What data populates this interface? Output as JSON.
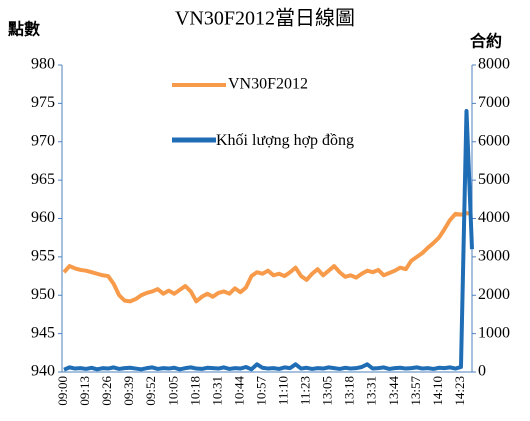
{
  "chart_data": {
    "type": "line",
    "title": "VN30F2012當日線圖",
    "y_label": "點數",
    "y2_label": "合約",
    "categories": [
      "09:00",
      null,
      null,
      null,
      "09:13",
      null,
      null,
      null,
      "09:26",
      null,
      null,
      null,
      "09:39",
      null,
      null,
      null,
      "09:52",
      null,
      null,
      null,
      "10:05",
      null,
      null,
      null,
      "10:18",
      null,
      null,
      null,
      "10:31",
      null,
      null,
      null,
      "10:44",
      null,
      null,
      null,
      "10:57",
      null,
      null,
      null,
      "11:10",
      null,
      null,
      null,
      "11:23",
      null,
      null,
      null,
      "13:05",
      null,
      null,
      null,
      "13:18",
      null,
      null,
      null,
      "13:31",
      null,
      null,
      null,
      "13:44",
      null,
      null,
      null,
      "13:57",
      null,
      null,
      null,
      "14:10",
      null,
      null,
      null,
      "14:23",
      null,
      null
    ],
    "series": [
      {
        "name": "VN30F2012",
        "color": "#f79b4b",
        "values": [
          953,
          953.8,
          953.5,
          953.3,
          953.2,
          953,
          952.8,
          952.6,
          952.5,
          951.5,
          950,
          949.3,
          949.2,
          949.5,
          950,
          950.3,
          950.5,
          950.8,
          950.2,
          950.6,
          950.2,
          950.7,
          951.2,
          950.5,
          949.2,
          949.8,
          950.2,
          949.8,
          950.3,
          950.5,
          950.2,
          950.9,
          950.4,
          951,
          952.5,
          953,
          952.8,
          953.2,
          952.6,
          952.8,
          952.5,
          953,
          953.6,
          952.5,
          952,
          952.8,
          953.4,
          952.6,
          953.2,
          953.8,
          953,
          952.4,
          952.6,
          952.3,
          952.8,
          953.2,
          953,
          953.3,
          952.6,
          952.9,
          953.2,
          953.6,
          953.4,
          954.5,
          955,
          955.5,
          956.2,
          956.8,
          957.5,
          958.6,
          959.8,
          960.6,
          960.5,
          960.7,
          960.6
        ]
      },
      {
        "name": "Khối lượng hợp đồng",
        "color": "#1f6db5",
        "axis": "y2",
        "values": [
          60,
          120,
          90,
          100,
          80,
          110,
          70,
          100,
          90,
          120,
          80,
          100,
          110,
          90,
          70,
          100,
          120,
          80,
          100,
          90,
          110,
          70,
          100,
          120,
          90,
          80,
          110,
          100,
          90,
          120,
          80,
          100,
          90,
          130,
          70,
          200,
          110,
          90,
          100,
          80,
          120,
          100,
          200,
          90,
          110,
          80,
          100,
          90,
          120,
          100,
          80,
          110,
          90,
          100,
          130,
          200,
          90,
          100,
          120,
          80,
          100,
          110,
          90,
          100,
          120,
          90,
          100,
          80,
          110,
          100,
          120,
          90,
          130,
          6800,
          3200
        ]
      }
    ],
    "ylim": [
      940,
      980
    ],
    "yticks": [
      940,
      945,
      950,
      955,
      960,
      965,
      970,
      975,
      980
    ],
    "y2lim": [
      0,
      8000
    ],
    "y2ticks": [
      0,
      1000,
      2000,
      3000,
      4000,
      5000,
      6000,
      7000,
      8000
    ]
  }
}
